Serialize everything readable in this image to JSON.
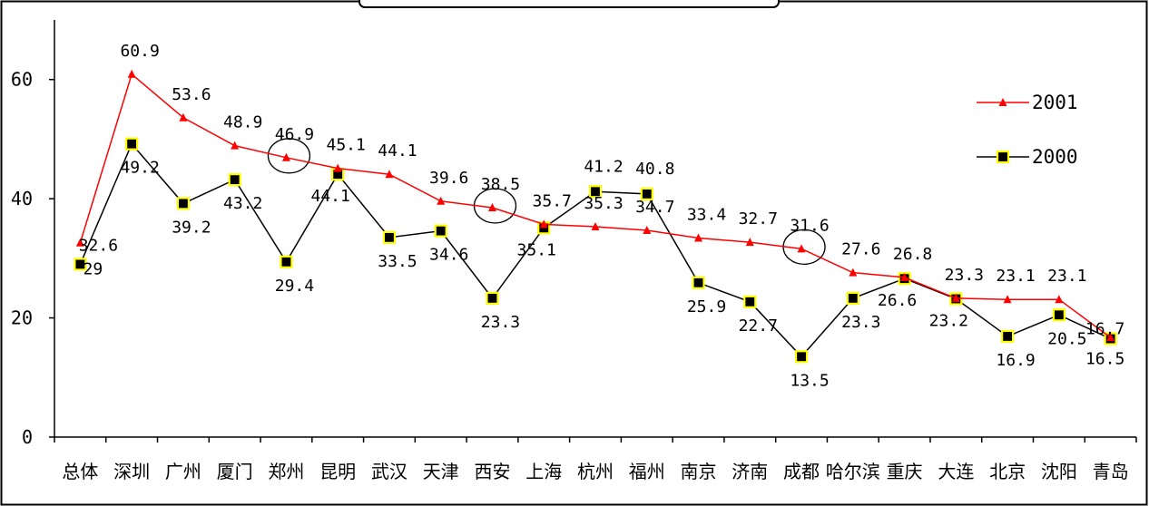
{
  "chart_data": {
    "type": "line",
    "categories": [
      "总体",
      "深圳",
      "广州",
      "厦门",
      "郑州",
      "昆明",
      "武汉",
      "天津",
      "西安",
      "上海",
      "杭州",
      "福州",
      "南京",
      "济南",
      "成都",
      "哈尔滨",
      "重庆",
      "大连",
      "北京",
      "沈阳",
      "青岛"
    ],
    "series": [
      {
        "name": "2001",
        "color": "#ff0000",
        "marker": "triangle",
        "values": [
          32.6,
          60.9,
          53.6,
          48.9,
          46.9,
          45.1,
          44.1,
          39.6,
          38.5,
          35.7,
          35.3,
          34.7,
          33.4,
          32.7,
          31.6,
          27.6,
          26.8,
          23.3,
          23.1,
          23.1,
          16.7
        ]
      },
      {
        "name": "2000",
        "color": "#000000",
        "marker": "square",
        "marker_fill": "#000000",
        "marker_edge": "#ffff00",
        "values": [
          29,
          49.2,
          39.2,
          43.2,
          29.4,
          44.1,
          33.5,
          34.6,
          23.3,
          35.1,
          41.2,
          40.8,
          25.9,
          22.7,
          13.5,
          23.3,
          26.6,
          23.2,
          16.9,
          20.5,
          16.5
        ]
      }
    ],
    "ylim": [
      0,
      70
    ],
    "yticks": [
      0,
      20,
      40,
      60
    ],
    "grid": false,
    "legend_position": "right",
    "highlighted_categories": [
      "郑州",
      "西安",
      "成都"
    ]
  }
}
